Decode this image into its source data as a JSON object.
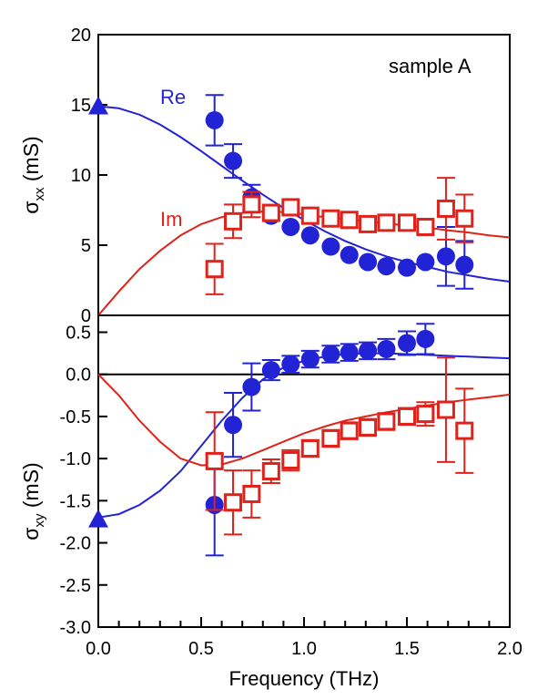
{
  "chart_data": [
    {
      "type": "scatter",
      "id": "sigma_xx",
      "ylabel": "σ",
      "ylabel_sub": "xx",
      "ylabel_unit": " (mS)",
      "annotation": "sample A",
      "xlim": [
        0,
        2.0
      ],
      "ylim": [
        0,
        20
      ],
      "yticks": [
        "0",
        "5",
        "10",
        "15",
        "20"
      ],
      "ytick_values": [
        0,
        5,
        10,
        15,
        20
      ],
      "series": [
        {
          "name": "Re",
          "color": "#2323d6",
          "marker": "circle",
          "x": [
            0.565,
            0.655,
            0.745,
            0.84,
            0.935,
            1.03,
            1.13,
            1.22,
            1.31,
            1.4,
            1.5,
            1.59,
            1.69,
            1.78
          ],
          "y": [
            13.9,
            11.0,
            8.4,
            7.1,
            6.3,
            5.7,
            4.9,
            4.3,
            3.8,
            3.5,
            3.4,
            3.8,
            4.2,
            3.6
          ],
          "yerr": [
            1.8,
            1.2,
            0.9,
            0.0,
            0.0,
            0.0,
            0.0,
            0.0,
            0.0,
            0.0,
            0.0,
            0.0,
            2.1,
            1.7
          ],
          "fit_x": [
            0,
            0.1,
            0.2,
            0.3,
            0.4,
            0.5,
            0.6,
            0.7,
            0.8,
            0.9,
            1.0,
            1.1,
            1.2,
            1.3,
            1.4,
            1.5,
            1.6,
            1.7,
            1.8,
            1.9,
            2.0
          ],
          "fit_y": [
            14.9,
            14.75,
            14.3,
            13.6,
            12.7,
            11.7,
            10.65,
            9.6,
            8.6,
            7.65,
            6.8,
            6.0,
            5.3,
            4.7,
            4.2,
            3.8,
            3.45,
            3.1,
            2.85,
            2.6,
            2.4
          ],
          "triangle": {
            "x": 0,
            "y": 14.9
          }
        },
        {
          "name": "Im",
          "color": "#e0221b",
          "marker": "square-open",
          "x": [
            0.565,
            0.655,
            0.745,
            0.84,
            0.935,
            1.03,
            1.13,
            1.22,
            1.31,
            1.4,
            1.5,
            1.59,
            1.69,
            1.78
          ],
          "y": [
            3.3,
            6.7,
            7.9,
            7.3,
            7.7,
            7.1,
            6.9,
            6.8,
            6.5,
            6.6,
            6.6,
            6.3,
            7.6,
            6.9
          ],
          "yerr": [
            1.8,
            1.2,
            0.9,
            0.0,
            0.0,
            0.0,
            0.0,
            0.0,
            0.0,
            0.0,
            0.0,
            0.0,
            2.2,
            1.7
          ],
          "fit_x": [
            0,
            0.1,
            0.2,
            0.3,
            0.4,
            0.5,
            0.6,
            0.7,
            0.8,
            0.9,
            1.0,
            1.1,
            1.2,
            1.3,
            1.4,
            1.5,
            1.6,
            1.7,
            1.8,
            1.9,
            2.0
          ],
          "fit_y": [
            0,
            1.7,
            3.3,
            4.6,
            5.7,
            6.5,
            7.0,
            7.3,
            7.4,
            7.35,
            7.2,
            7.0,
            6.85,
            6.7,
            6.55,
            6.4,
            6.25,
            6.05,
            5.9,
            5.7,
            5.55
          ]
        }
      ]
    },
    {
      "type": "scatter",
      "id": "sigma_xy",
      "ylabel": "σ",
      "ylabel_sub": "xy",
      "ylabel_unit": " (mS)",
      "xlabel": "Frequency (THz)",
      "xlim": [
        0,
        2.0
      ],
      "ylim": [
        -3.0,
        0.7
      ],
      "xticks": [
        "0.0",
        "0.5",
        "1.0",
        "1.5",
        "2.0"
      ],
      "xtick_values": [
        0,
        0.5,
        1.0,
        1.5,
        2.0
      ],
      "yticks": [
        "0.5",
        "0.0",
        "-0.5",
        "-1.0",
        "-1.5",
        "-2.0",
        "-2.5",
        "-3.0"
      ],
      "ytick_values": [
        0.5,
        0.0,
        -0.5,
        -1.0,
        -1.5,
        -2.0,
        -2.5,
        -3.0
      ],
      "series": [
        {
          "name": "Re",
          "color": "#2323d6",
          "marker": "circle",
          "x": [
            0.565,
            0.655,
            0.745,
            0.84,
            0.935,
            1.03,
            1.13,
            1.22,
            1.31,
            1.4,
            1.5,
            1.59
          ],
          "y": [
            -1.55,
            -0.6,
            -0.15,
            0.05,
            0.12,
            0.18,
            0.24,
            0.26,
            0.28,
            0.3,
            0.37,
            0.42
          ],
          "yerr": [
            0.6,
            0.38,
            0.28,
            0.12,
            0.1,
            0.1,
            0.1,
            0.1,
            0.1,
            0.12,
            0.14,
            0.18
          ],
          "fit_x": [
            0,
            0.1,
            0.2,
            0.3,
            0.4,
            0.5,
            0.6,
            0.7,
            0.8,
            0.9,
            1.0,
            1.1,
            1.2,
            1.3,
            1.4,
            1.5,
            1.6,
            1.7,
            1.8,
            1.9,
            2.0
          ],
          "fit_y": [
            -1.7,
            -1.66,
            -1.55,
            -1.38,
            -1.15,
            -0.85,
            -0.55,
            -0.28,
            -0.06,
            0.08,
            0.16,
            0.21,
            0.24,
            0.25,
            0.25,
            0.24,
            0.23,
            0.22,
            0.21,
            0.2,
            0.19
          ],
          "triangle": {
            "x": 0,
            "y": -1.72
          }
        },
        {
          "name": "Im",
          "color": "#e0221b",
          "marker": "square-open",
          "x": [
            0.565,
            0.655,
            0.745,
            0.84,
            0.935,
            1.03,
            1.13,
            1.22,
            1.31,
            1.4,
            1.5,
            1.59,
            1.69,
            1.78
          ],
          "y": [
            -1.03,
            -1.52,
            -1.42,
            -1.15,
            -1.02,
            -0.88,
            -0.76,
            -0.67,
            -0.63,
            -0.56,
            -0.5,
            -0.47,
            -0.42,
            -0.67
          ],
          "yerr": [
            0.58,
            0.38,
            0.28,
            0.14,
            0.12,
            0.1,
            0.1,
            0.1,
            0.1,
            0.1,
            0.1,
            0.14,
            0.62,
            0.5
          ],
          "fit_x": [
            0,
            0.1,
            0.2,
            0.3,
            0.4,
            0.5,
            0.6,
            0.7,
            0.8,
            0.9,
            1.0,
            1.1,
            1.2,
            1.3,
            1.4,
            1.5,
            1.6,
            1.7,
            1.8,
            1.9,
            2.0
          ],
          "fit_y": [
            0,
            -0.25,
            -0.55,
            -0.8,
            -1.0,
            -1.08,
            -1.07,
            -1.0,
            -0.9,
            -0.8,
            -0.7,
            -0.62,
            -0.55,
            -0.5,
            -0.45,
            -0.41,
            -0.37,
            -0.33,
            -0.3,
            -0.27,
            -0.24
          ]
        }
      ]
    }
  ]
}
